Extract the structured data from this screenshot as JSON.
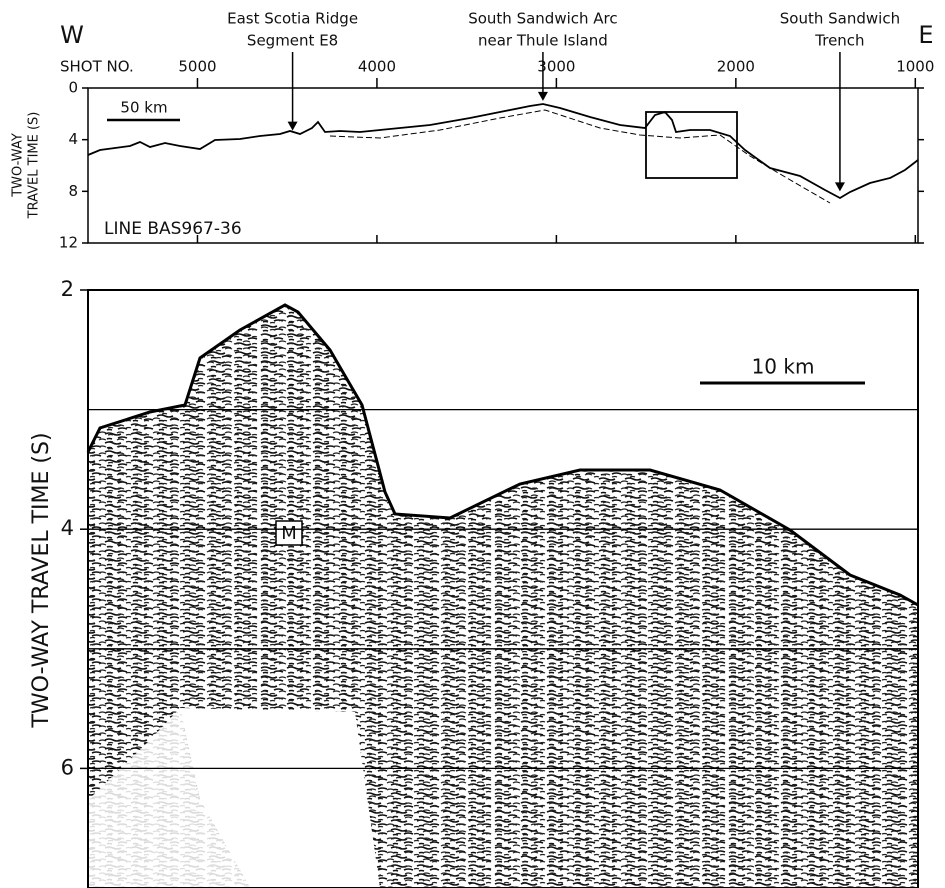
{
  "top_panel": {
    "west_label": "W",
    "east_label": "E",
    "x_axis_label": "SHOT NO.",
    "xlim": [
      5610,
      985
    ],
    "xticks": [
      5000,
      4000,
      3000,
      2000,
      1000
    ],
    "ylim": [
      0,
      12
    ],
    "yticks": [
      0,
      4,
      8,
      12
    ],
    "y_label_lines": [
      "TWO-WAY",
      "TRAVEL TIME (S)"
    ],
    "scale_bar": "50 km",
    "line_label": "LINE BAS967-36",
    "annotations": [
      {
        "lines": [
          "East Scotia Ridge",
          "Segment E8"
        ],
        "shot": 4470,
        "twt": 3.3
      },
      {
        "lines": [
          "South Sandwich Arc",
          "near Thule Island"
        ],
        "shot": 3075,
        "twt": 1.0
      },
      {
        "lines": [
          "South Sandwich",
          "Trench"
        ],
        "shot": 1420,
        "twt": 8.0
      }
    ]
  },
  "bottom_panel": {
    "ylim": [
      2,
      7
    ],
    "yticks": [
      2,
      4,
      6
    ],
    "grid_lines": [
      3,
      4,
      5,
      6
    ],
    "y_label": "TWO-WAY TRAVEL TIME (S)",
    "scale_bar": "10 km",
    "marker": "M"
  }
}
